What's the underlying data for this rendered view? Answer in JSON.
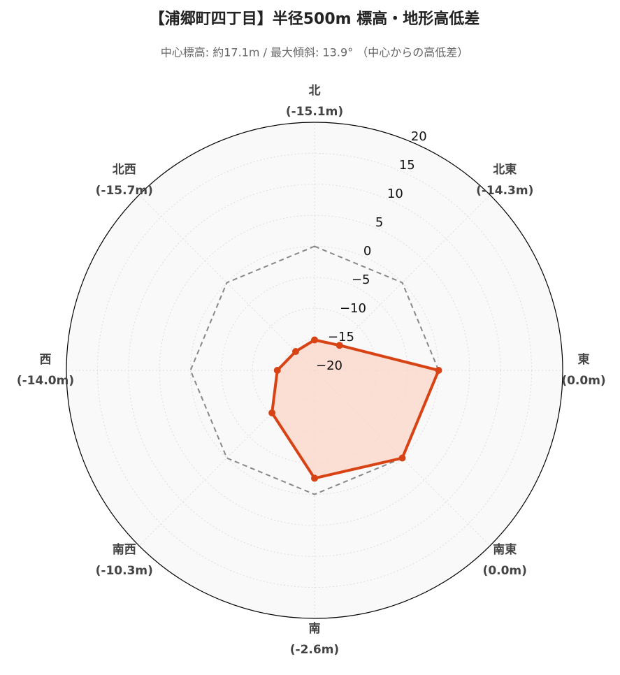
{
  "chart_data": {
    "type": "radar",
    "title": "【浦郷町四丁目】半径500m 標高・地形高低差",
    "subtitle": "中心標高: 約17.1m / 最大傾斜: 13.9° （中心からの高低差）",
    "categories": [
      "北",
      "北東",
      "東",
      "南東",
      "南",
      "南西",
      "西",
      "北西"
    ],
    "values": [
      -15.1,
      -14.3,
      0.0,
      0.0,
      -2.6,
      -10.3,
      -14.0,
      -15.7
    ],
    "value_labels": [
      "(-15.1m)",
      "(-14.3m)",
      "(0.0m)",
      "(0.0m)",
      "(-2.6m)",
      "(-10.3m)",
      "(-14.0m)",
      "(-15.7m)"
    ],
    "color": "#d84315",
    "fill_color": "#fbd8cc",
    "ylim": [
      -20,
      20
    ],
    "yticks": [
      {
        "value": -20,
        "label": "−20"
      },
      {
        "value": -15,
        "label": "−15"
      },
      {
        "value": -10,
        "label": "−10"
      },
      {
        "value": -5,
        "label": "−5"
      },
      0,
      5,
      10,
      15,
      20
    ],
    "grid": true,
    "zero_line": true
  }
}
